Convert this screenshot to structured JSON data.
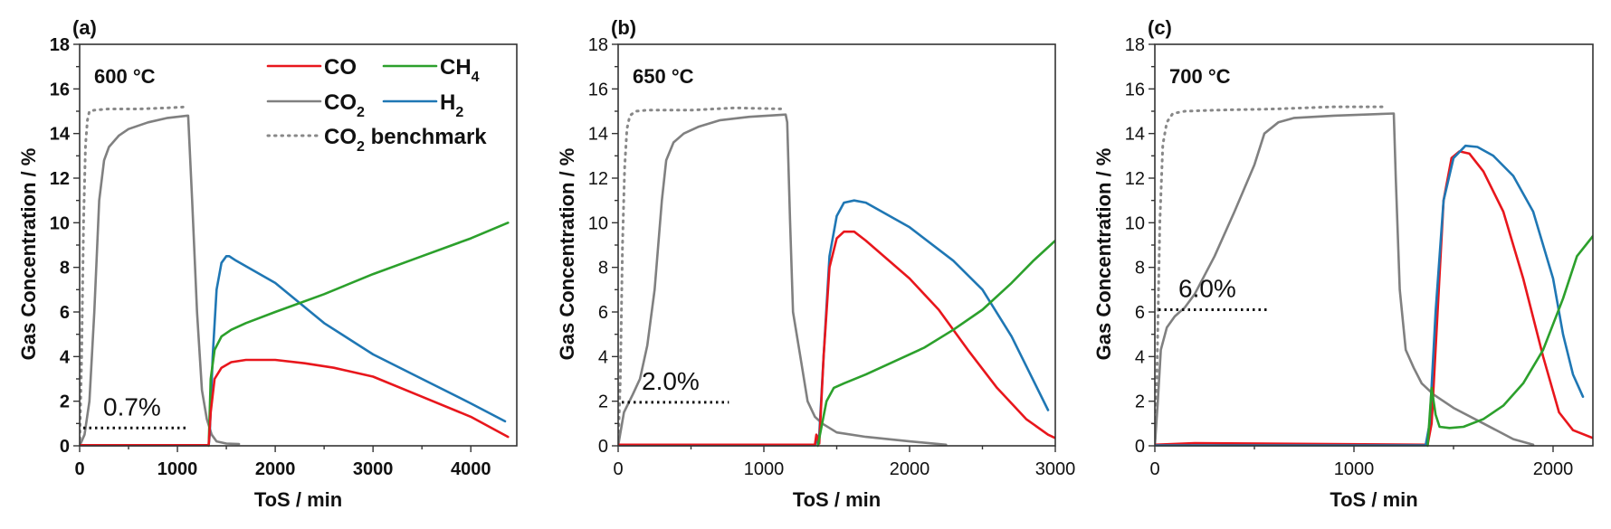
{
  "chart_data": [
    {
      "type": "line",
      "panel_label": "(a)",
      "temperature_label": "600 °C",
      "xlabel": "ToS / min",
      "ylabel": "Gas Concentration / %",
      "xlim": [
        0,
        4470
      ],
      "ylim": [
        0,
        18
      ],
      "xticks": [
        0,
        1000,
        2000,
        3000,
        4000
      ],
      "yticks": [
        0,
        2,
        4,
        6,
        8,
        10,
        12,
        14,
        16,
        18
      ],
      "bold_ticks": true,
      "annotation": {
        "text": "0.7%",
        "y": 0.8,
        "x_range": [
          0,
          1100
        ]
      },
      "legend": {
        "placement": "top-right",
        "entries": [
          {
            "label": "CO",
            "sub": "",
            "color": "#e8161c",
            "style": "solid"
          },
          {
            "label": "CH",
            "sub": "4",
            "color": "#2ca02c",
            "style": "solid"
          },
          {
            "label": "CO",
            "sub": "2",
            "color": "#808080",
            "style": "solid"
          },
          {
            "label": "H",
            "sub": "2",
            "color": "#1f77b4",
            "style": "solid"
          },
          {
            "label": "CO",
            "sub": "2",
            "suffix": " benchmark",
            "color": "#888888",
            "style": "dotted"
          }
        ]
      },
      "series": [
        {
          "name": "CO2 benchmark",
          "color": "#888888",
          "style": "dotted",
          "x": [
            0,
            20,
            40,
            60,
            80,
            100,
            150,
            300,
            600,
            900,
            1100
          ],
          "y": [
            0,
            4,
            10,
            13.5,
            14.6,
            15.0,
            15.05,
            15.1,
            15.1,
            15.15,
            15.2
          ]
        },
        {
          "name": "CO2",
          "color": "#808080",
          "style": "solid",
          "x": [
            0,
            50,
            100,
            150,
            200,
            250,
            300,
            400,
            500,
            700,
            900,
            1100,
            1110,
            1150,
            1200,
            1250,
            1300,
            1350,
            1400,
            1500,
            1630
          ],
          "y": [
            0,
            0.5,
            2,
            6,
            11,
            12.8,
            13.4,
            13.9,
            14.2,
            14.5,
            14.7,
            14.8,
            14.8,
            11,
            6,
            2.5,
            1.2,
            0.5,
            0.2,
            0.1,
            0.08
          ]
        },
        {
          "name": "H2",
          "color": "#1f77b4",
          "style": "solid",
          "x": [
            0,
            1320,
            1330,
            1360,
            1400,
            1450,
            1500,
            1530,
            1600,
            2000,
            2500,
            3000,
            3500,
            4000,
            4350
          ],
          "y": [
            0.02,
            0.02,
            0.5,
            4,
            7,
            8.2,
            8.5,
            8.5,
            8.3,
            7.3,
            5.5,
            4.1,
            3,
            1.9,
            1.1
          ]
        },
        {
          "name": "CH4",
          "color": "#2ca02c",
          "style": "solid",
          "x": [
            1320,
            1340,
            1380,
            1450,
            1550,
            1700,
            2000,
            2500,
            3000,
            3500,
            4000,
            4380
          ],
          "y": [
            0,
            3,
            4.3,
            4.9,
            5.2,
            5.5,
            6.0,
            6.8,
            7.7,
            8.5,
            9.3,
            10.0
          ]
        },
        {
          "name": "CO",
          "color": "#e8161c",
          "style": "solid",
          "x": [
            0,
            1320,
            1340,
            1380,
            1450,
            1550,
            1700,
            2000,
            2300,
            2600,
            3000,
            3500,
            4000,
            4380
          ],
          "y": [
            0.03,
            0.03,
            1.5,
            3.0,
            3.5,
            3.75,
            3.85,
            3.85,
            3.7,
            3.5,
            3.1,
            2.2,
            1.3,
            0.4
          ]
        }
      ]
    },
    {
      "type": "line",
      "panel_label": "(b)",
      "temperature_label": "650 °C",
      "xlabel": "ToS / min",
      "ylabel": "Gas Concentration / %",
      "xlim": [
        0,
        3000
      ],
      "ylim": [
        0,
        18
      ],
      "xticks": [
        0,
        1000,
        2000,
        3000
      ],
      "yticks": [
        0,
        2,
        4,
        6,
        8,
        10,
        12,
        14,
        16,
        18
      ],
      "bold_ticks": false,
      "annotation": {
        "text": "2.0%",
        "y": 1.95,
        "x_range": [
          0,
          760
        ]
      },
      "series": [
        {
          "name": "CO2 benchmark",
          "color": "#888888",
          "style": "dotted",
          "x": [
            0,
            15,
            30,
            45,
            60,
            80,
            120,
            200,
            500,
            800,
            1150
          ],
          "y": [
            0,
            3,
            9,
            12.5,
            14.2,
            14.8,
            15.0,
            15.05,
            15.05,
            15.15,
            15.1
          ]
        },
        {
          "name": "CO2",
          "color": "#808080",
          "style": "solid",
          "x": [
            0,
            40,
            100,
            150,
            200,
            250,
            300,
            330,
            380,
            450,
            550,
            700,
            900,
            1150,
            1160,
            1180,
            1200,
            1250,
            1300,
            1350,
            1400,
            1500,
            1700,
            2000,
            2250
          ],
          "y": [
            0,
            1.5,
            2.3,
            3,
            4.5,
            7,
            11,
            12.8,
            13.6,
            14.0,
            14.3,
            14.6,
            14.75,
            14.85,
            14.5,
            10,
            6,
            4,
            2,
            1.3,
            1.0,
            0.6,
            0.4,
            0.2,
            0.05
          ]
        },
        {
          "name": "H2",
          "color": "#1f77b4",
          "style": "solid",
          "x": [
            0,
            1350,
            1380,
            1410,
            1450,
            1500,
            1550,
            1620,
            1700,
            2000,
            2300,
            2500,
            2700,
            2950
          ],
          "y": [
            0.02,
            0.02,
            0.5,
            4,
            8.5,
            10.3,
            10.9,
            11.0,
            10.9,
            9.8,
            8.3,
            7.0,
            4.9,
            1.6
          ]
        },
        {
          "name": "CO",
          "color": "#e8161c",
          "style": "solid",
          "x": [
            0,
            1350,
            1360,
            1380,
            1410,
            1450,
            1500,
            1550,
            1620,
            1700,
            2000,
            2200,
            2400,
            2600,
            2800,
            2950,
            3000
          ],
          "y": [
            0.05,
            0.05,
            0.5,
            0.1,
            4,
            8,
            9.3,
            9.6,
            9.6,
            9.2,
            7.5,
            6.1,
            4.3,
            2.6,
            1.2,
            0.5,
            0.35
          ]
        },
        {
          "name": "CH4",
          "color": "#2ca02c",
          "style": "solid",
          "x": [
            1370,
            1400,
            1430,
            1480,
            1550,
            1700,
            1900,
            2100,
            2300,
            2500,
            2700,
            2850,
            3000
          ],
          "y": [
            0,
            1.0,
            2.0,
            2.6,
            2.8,
            3.2,
            3.8,
            4.4,
            5.2,
            6.1,
            7.3,
            8.3,
            9.2
          ]
        }
      ]
    },
    {
      "type": "line",
      "panel_label": "(c)",
      "temperature_label": "700 °C",
      "xlabel": "ToS / min",
      "ylabel": "Gas Concentration / %",
      "xlim": [
        0,
        2200
      ],
      "ylim": [
        0,
        18
      ],
      "xticks": [
        0,
        1000,
        2000
      ],
      "yticks": [
        0,
        2,
        4,
        6,
        8,
        10,
        12,
        14,
        16,
        18
      ],
      "bold_ticks": false,
      "annotation": {
        "text": "6.0%",
        "y": 6.1,
        "x_range": [
          0,
          570
        ]
      },
      "series": [
        {
          "name": "CO2 benchmark",
          "color": "#888888",
          "style": "dotted",
          "x": [
            0,
            10,
            25,
            40,
            60,
            90,
            150,
            300,
            600,
            900,
            1150
          ],
          "y": [
            0,
            3,
            10,
            13.5,
            14.5,
            14.9,
            15.0,
            15.05,
            15.1,
            15.2,
            15.2
          ]
        },
        {
          "name": "CO2",
          "color": "#808080",
          "style": "solid",
          "x": [
            0,
            15,
            30,
            60,
            100,
            150,
            200,
            300,
            400,
            500,
            550,
            620,
            700,
            900,
            1200,
            1210,
            1230,
            1260,
            1300,
            1340,
            1400,
            1500,
            1650,
            1800,
            1900
          ],
          "y": [
            0,
            2,
            4.3,
            5.3,
            5.8,
            6.2,
            6.8,
            8.5,
            10.5,
            12.6,
            14.0,
            14.5,
            14.7,
            14.8,
            14.9,
            12,
            7,
            4.3,
            3.5,
            2.8,
            2.3,
            1.7,
            1.0,
            0.3,
            0.05
          ]
        },
        {
          "name": "CO",
          "color": "#e8161c",
          "style": "solid",
          "x": [
            0,
            200,
            1370,
            1390,
            1420,
            1450,
            1490,
            1530,
            1580,
            1650,
            1750,
            1850,
            1950,
            2030,
            2100,
            2200
          ],
          "y": [
            0.05,
            0.12,
            0.05,
            1,
            6,
            11,
            12.9,
            13.2,
            13.1,
            12.3,
            10.5,
            7.5,
            4,
            1.5,
            0.7,
            0.35
          ]
        },
        {
          "name": "H2",
          "color": "#1f77b4",
          "style": "solid",
          "x": [
            0,
            1360,
            1380,
            1410,
            1450,
            1500,
            1560,
            1620,
            1700,
            1800,
            1900,
            2000,
            2050,
            2100,
            2150
          ],
          "y": [
            0.02,
            0.02,
            1,
            6,
            11,
            12.9,
            13.45,
            13.4,
            13.0,
            12.1,
            10.5,
            7.5,
            5,
            3.2,
            2.2
          ]
        },
        {
          "name": "CH4",
          "color": "#2ca02c",
          "style": "solid",
          "x": [
            1370,
            1390,
            1410,
            1430,
            1480,
            1550,
            1650,
            1750,
            1850,
            1950,
            2050,
            2120,
            2200
          ],
          "y": [
            0,
            2.6,
            1.4,
            0.85,
            0.8,
            0.85,
            1.2,
            1.8,
            2.8,
            4.3,
            6.6,
            8.5,
            9.4
          ]
        }
      ]
    }
  ]
}
